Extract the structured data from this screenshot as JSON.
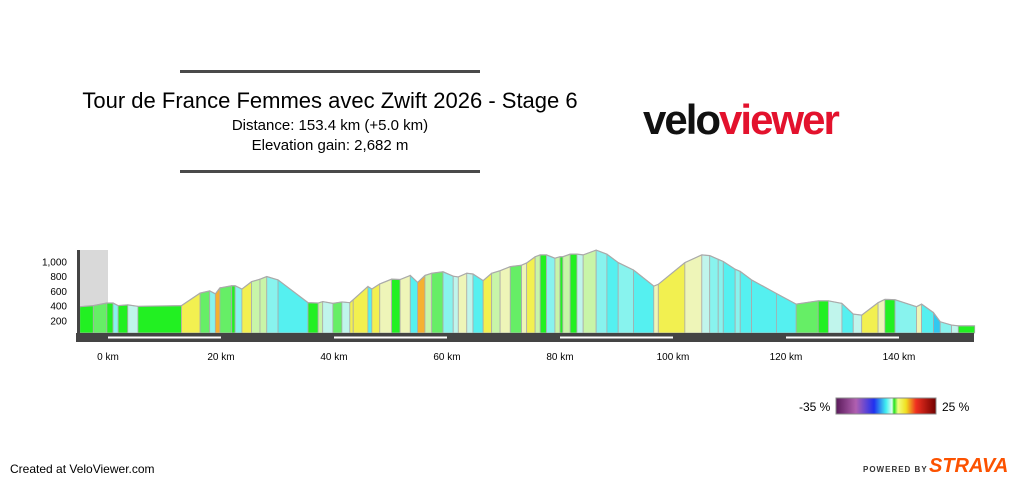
{
  "header": {
    "title": "Tour de France Femmes avec Zwift 2026 - Stage 6",
    "distance": "Distance: 153.4 km (+5.0 km)",
    "elevation_gain": "Elevation gain: 2,682 m"
  },
  "logo": {
    "part1": "velo",
    "part2": "viewer",
    "colors": {
      "velo": "#111111",
      "viewer": "#e3122d"
    }
  },
  "chart_data": {
    "type": "area",
    "title": "",
    "xlabel": "",
    "ylabel": "",
    "x_unit": "km",
    "xlim": [
      -5,
      153.4
    ],
    "ylim": [
      0,
      1200
    ],
    "y_ticks": [
      "200",
      "400",
      "600",
      "800",
      "1,000"
    ],
    "y_tick_values": [
      200,
      400,
      600,
      800,
      1000
    ],
    "x_ticks": [
      "0 km",
      "20 km",
      "40 km",
      "60 km",
      "80 km",
      "100 km",
      "120 km",
      "140 km"
    ],
    "x_tick_values": [
      0,
      20,
      40,
      60,
      80,
      100,
      120,
      140
    ],
    "neutral_zone_km": [
      -5,
      0
    ],
    "series": [
      {
        "x": [
          -5,
          -2.6,
          -0.2,
          0.9,
          1.8,
          3.5,
          5.3,
          13,
          16.3,
          18,
          19,
          19.8,
          21.9,
          22.5,
          23.7,
          25.4,
          26.9,
          28.1,
          30.1,
          35.4,
          37.2,
          38,
          39.8,
          41.4,
          42.8,
          43.4,
          46,
          46.7,
          48.1,
          50.2,
          51.7,
          53.5,
          54.8,
          56.1,
          57.3,
          59.3,
          61.1,
          62,
          63.5,
          64.6,
          66.4,
          67.9,
          69.4,
          71.2,
          73.2,
          74.1,
          75.6,
          76.5,
          77.6,
          79.1,
          80,
          80.5,
          81.8,
          83,
          84.1,
          86.4,
          88.3,
          90.3,
          93,
          96.6,
          97.4,
          102.1,
          105.1,
          106.5,
          108,
          108.9,
          111,
          111.9,
          113.9,
          118.3,
          121.8,
          125.7,
          127.5,
          129.9,
          131.9,
          133.4,
          136.3,
          137.5,
          139.3,
          143.1,
          144,
          146.1,
          147.3,
          149.3,
          150.5,
          153.4
        ],
        "y": [
          385,
          400,
          435,
          435,
          400,
          410,
          390,
          400,
          570,
          600,
          560,
          640,
          670,
          670,
          625,
          725,
          760,
          795,
          750,
          440,
          435,
          455,
          430,
          450,
          440,
          480,
          660,
          625,
          695,
          760,
          755,
          810,
          715,
          810,
          840,
          860,
          800,
          790,
          840,
          830,
          740,
          840,
          875,
          930,
          950,
          980,
          1065,
          1090,
          1090,
          1045,
          1065,
          1065,
          1100,
          1100,
          1090,
          1155,
          1100,
          985,
          885,
          665,
          690,
          985,
          1090,
          1080,
          1030,
          1000,
          895,
          865,
          750,
          565,
          420,
          465,
          465,
          430,
          285,
          270,
          440,
          485,
          480,
          385,
          420,
          305,
          180,
          135,
          125,
          125
        ]
      }
    ]
  },
  "legend": {
    "min_label": "-35 %",
    "max_label": "25 %",
    "min": -35,
    "max": 25
  },
  "footer": {
    "credit": "Created at VeloViewer.com",
    "powered_by": "POWERED BY",
    "strava": "STRAVA"
  }
}
